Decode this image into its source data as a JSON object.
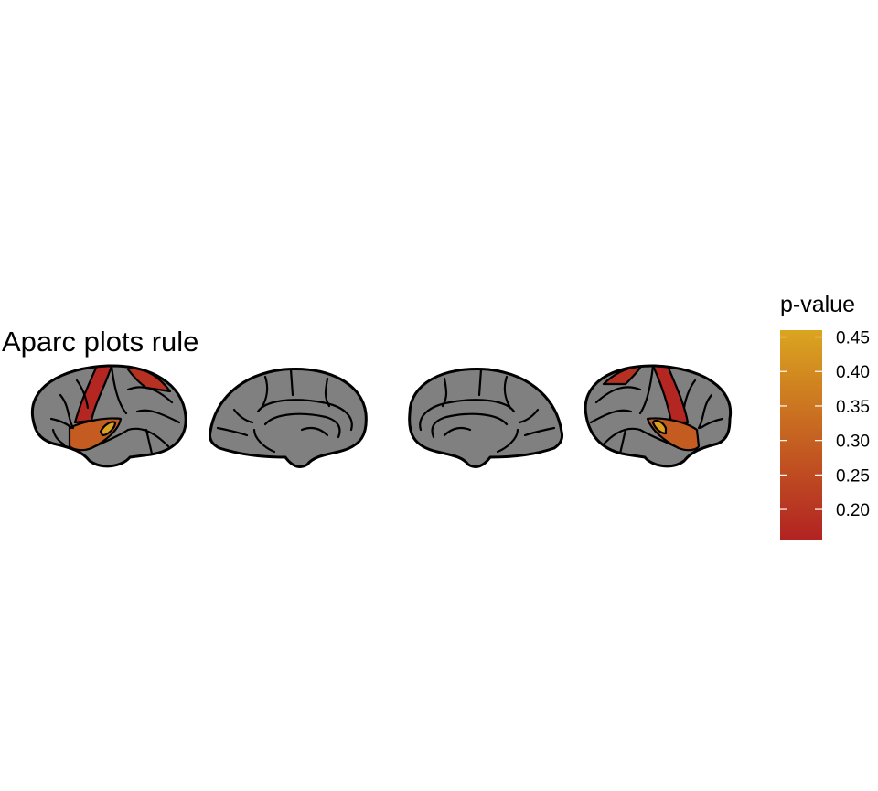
{
  "chart_data": {
    "type": "brain-atlas",
    "atlas": "aparc",
    "title": "Aparc plots rule",
    "legend": {
      "title": "p-value",
      "min": 0.155,
      "max": 0.46,
      "ticks": [
        0.2,
        0.25,
        0.3,
        0.35,
        0.4,
        0.45
      ],
      "tick_labels": [
        "0.20",
        "0.25",
        "0.30",
        "0.35",
        "0.40",
        "0.45"
      ],
      "color_low": "#b22222",
      "color_high": "#daa520"
    },
    "na_color": "#808080",
    "views": [
      "lateral left",
      "medial left",
      "medial right",
      "lateral right"
    ],
    "regions": [
      {
        "name": "precentral",
        "value": 0.165
      },
      {
        "name": "postcentral",
        "value": 0.19
      },
      {
        "name": "superiortemporal",
        "value": 0.29
      },
      {
        "name": "transversetemporal",
        "value": 0.45
      }
    ]
  }
}
